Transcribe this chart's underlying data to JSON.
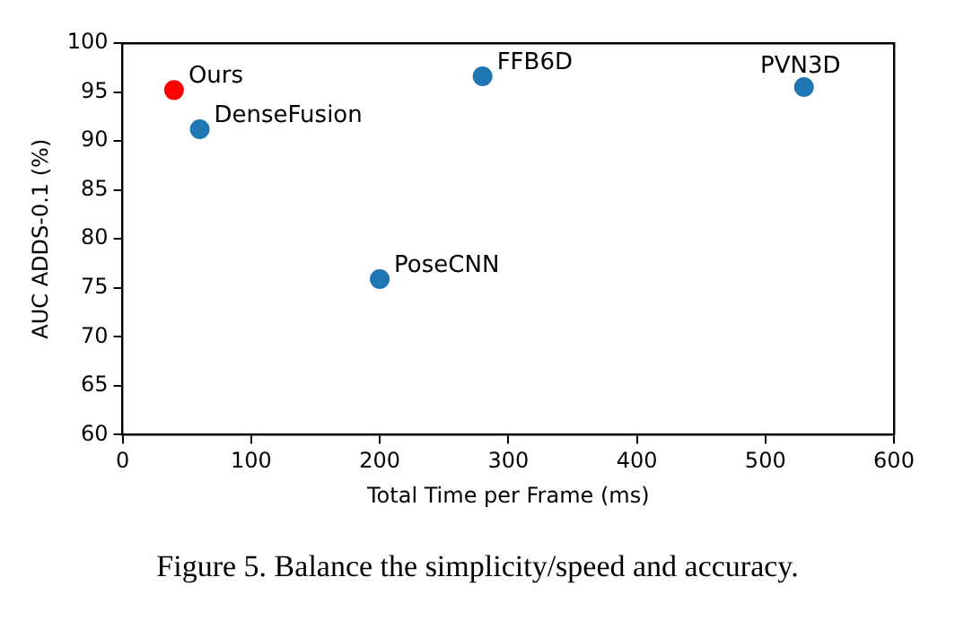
{
  "chart_data": {
    "type": "scatter",
    "xlabel": "Total Time per Frame (ms)",
    "ylabel": "AUC ADDS-0.1 (%)",
    "xlim": [
      0,
      600
    ],
    "xticks": [
      0,
      100,
      200,
      300,
      400,
      500,
      600
    ],
    "ylim": [
      60,
      100
    ],
    "yticks": [
      60,
      65,
      70,
      75,
      80,
      85,
      90,
      95,
      100
    ],
    "grid": false,
    "legend": false,
    "marker": "circle",
    "series": [
      {
        "name": "Ours",
        "color": "#ff0000",
        "x": [
          40
        ],
        "values": [
          95.2
        ]
      },
      {
        "name": "DenseFusion",
        "color": "#1f77b4",
        "x": [
          60
        ],
        "values": [
          91.2
        ]
      },
      {
        "name": "PoseCNN",
        "color": "#1f77b4",
        "x": [
          200
        ],
        "values": [
          75.9
        ]
      },
      {
        "name": "FFB6D",
        "color": "#1f77b4",
        "x": [
          280
        ],
        "values": [
          96.6
        ]
      },
      {
        "name": "PVN3D",
        "color": "#1f77b4",
        "x": [
          530
        ],
        "values": [
          95.5
        ]
      }
    ],
    "annotations": [
      "Figure 5. Balance the simplicity/speed and accuracy."
    ]
  }
}
